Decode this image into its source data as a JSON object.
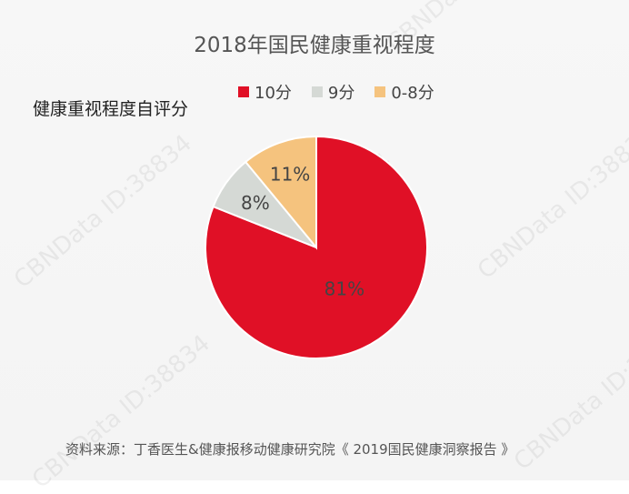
{
  "chart_data": {
    "type": "pie",
    "title": "2018年国民健康重视程度",
    "ylabel": "健康重视程度自评分",
    "slices": [
      {
        "label": "10分",
        "value": 81,
        "display": "81%",
        "color": "#e01026"
      },
      {
        "label": "9分",
        "value": 8,
        "display": "8%",
        "color": "#d5d9d5"
      },
      {
        "label": "0-8分",
        "value": 11,
        "display": "11%",
        "color": "#f5c37e"
      }
    ],
    "legend_position": "top"
  },
  "source": "资料来源：丁香医生&健康报移动健康研究院《 2019国民健康洞察报告 》",
  "watermark": "CBNData ID:38834"
}
